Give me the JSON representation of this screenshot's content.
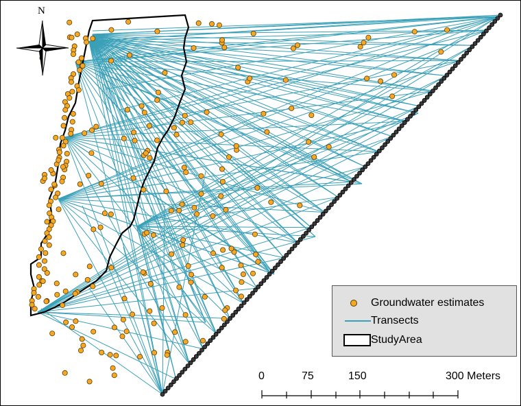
{
  "north_label": "N",
  "legend": {
    "estimates_label": "Groundwater estimates",
    "transects_label": "Transects",
    "study_area_label": "StudyArea"
  },
  "scale_bar": {
    "labels": [
      "0",
      "75",
      "150",
      "300 Meters"
    ]
  },
  "colors": {
    "estimate_fill": "#f4a826",
    "transect_line": "#3aa0b8",
    "boundary": "#000000",
    "legend_bg": "#e1e1e1"
  }
}
